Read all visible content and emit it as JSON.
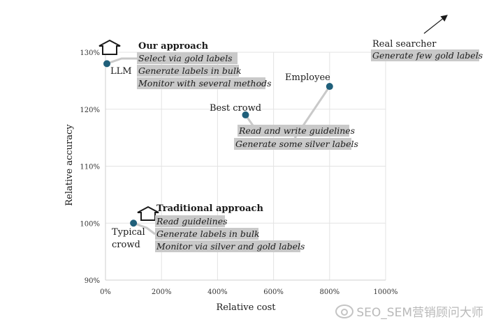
{
  "chart_data": {
    "type": "scatter",
    "title": "",
    "xlabel": "Relative cost",
    "ylabel": "Relative accuracy",
    "xlim": [
      0,
      1000
    ],
    "ylim": [
      90,
      130
    ],
    "x_ticks": [
      0,
      200,
      400,
      600,
      800,
      1000
    ],
    "x_tick_labels": [
      "0%",
      "200%",
      "400%",
      "600%",
      "800%",
      "1000%"
    ],
    "y_ticks": [
      90,
      100,
      110,
      120,
      130
    ],
    "y_tick_labels": [
      "90%",
      "100%",
      "110%",
      "120%",
      "130%"
    ],
    "grid": true,
    "marker_color": "#1f5f7a",
    "points": [
      {
        "label": "LLM",
        "x": 5,
        "y": 128
      },
      {
        "label": "Typical crowd",
        "x": 100,
        "y": 100
      },
      {
        "label": "Best crowd",
        "x": 500,
        "y": 119
      },
      {
        "label": "Employee",
        "x": 800,
        "y": 124
      }
    ],
    "outside_point": {
      "label": "Real searcher",
      "note": "Generate few gold labels"
    },
    "annotations": [
      {
        "title": "Our approach",
        "lines": [
          "Select via gold labels",
          "Generate labels in bulk",
          "Monitor with several methods"
        ]
      },
      {
        "title": "Traditional approach",
        "lines": [
          "Read guidelines",
          "Generate labels in bulk",
          "Monitor via silver and gold labels"
        ]
      },
      {
        "title": "",
        "lines": [
          "Read and write guidelines",
          "Generate some silver labels"
        ]
      }
    ]
  },
  "watermark": "SEO_SEM营销顾问大师"
}
